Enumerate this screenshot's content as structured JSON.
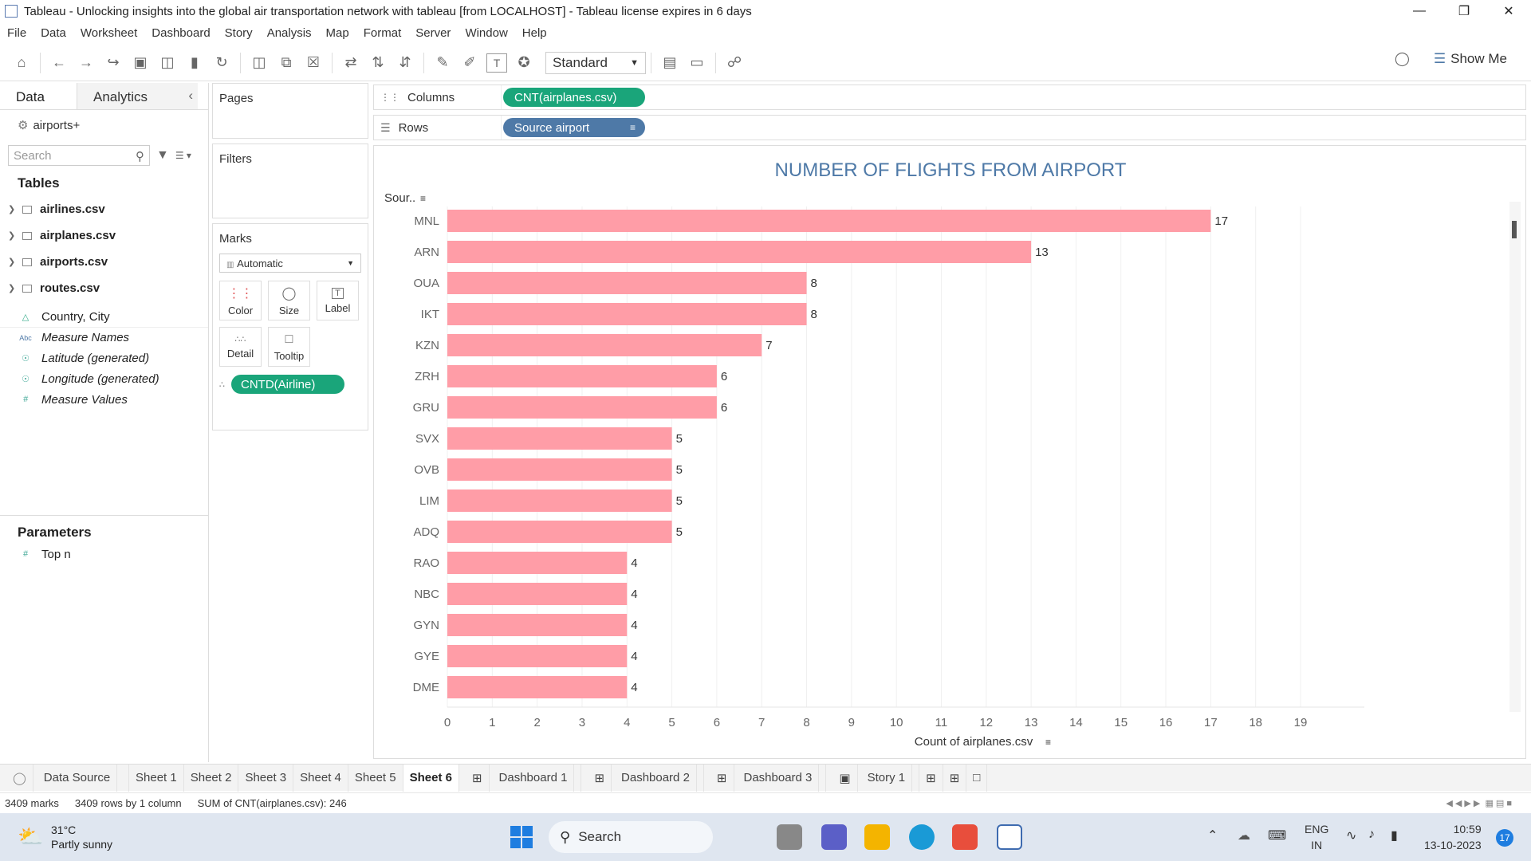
{
  "window": {
    "title": "Tableau - Unlocking insights into the global air transportation network with tableau [from LOCALHOST] - Tableau license expires in 6 days"
  },
  "menu": [
    "File",
    "Data",
    "Worksheet",
    "Dashboard",
    "Story",
    "Analysis",
    "Map",
    "Format",
    "Server",
    "Window",
    "Help"
  ],
  "toolbar": {
    "fit_mode": "Standard",
    "show_me": "Show Me"
  },
  "left_panel": {
    "tab_data": "Data",
    "tab_analytics": "Analytics",
    "datasource": "airports+",
    "search_placeholder": "Search",
    "tables_heading": "Tables",
    "tables": [
      "airlines.csv",
      "airplanes.csv",
      "airports.csv",
      "routes.csv"
    ],
    "fields": [
      {
        "name": "Country, City",
        "italic": false,
        "icon": "hierarchy-icon"
      },
      {
        "name": "Measure Names",
        "italic": true,
        "icon": "abc-icon"
      },
      {
        "name": "Latitude (generated)",
        "italic": true,
        "icon": "globe-icon"
      },
      {
        "name": "Longitude (generated)",
        "italic": true,
        "icon": "globe-icon"
      },
      {
        "name": "Measure Values",
        "italic": true,
        "icon": "hash-icon"
      }
    ],
    "parameters_heading": "Parameters",
    "parameters": [
      "Top n"
    ]
  },
  "shelves": {
    "pages": "Pages",
    "filters": "Filters",
    "marks": "Marks",
    "marks_type": "Automatic",
    "marks_buttons": [
      "Color",
      "Size",
      "Label",
      "Detail",
      "Tooltip"
    ],
    "marks_pill": "CNTD(Airline)",
    "columns_label": "Columns",
    "columns_pill": "CNT(airplanes.csv)",
    "rows_label": "Rows",
    "rows_pill": "Source airport"
  },
  "chart_data": {
    "type": "bar",
    "orientation": "horizontal",
    "title": "NUMBER OF FLIGHTS FROM AIRPORT",
    "row_header": "Sour..",
    "xlabel": "Count of airplanes.csv",
    "categories": [
      "MNL",
      "ARN",
      "OUA",
      "IKT",
      "KZN",
      "ZRH",
      "GRU",
      "SVX",
      "OVB",
      "LIM",
      "ADQ",
      "RAO",
      "NBC",
      "GYN",
      "GYE",
      "DME"
    ],
    "values": [
      17,
      13,
      8,
      8,
      7,
      6,
      6,
      5,
      5,
      5,
      5,
      4,
      4,
      4,
      4,
      4
    ],
    "xlim": [
      0,
      19
    ],
    "xticks": [
      0,
      1,
      2,
      3,
      4,
      5,
      6,
      7,
      8,
      9,
      10,
      11,
      12,
      13,
      14,
      15,
      16,
      17,
      18,
      19
    ],
    "bar_color": "#ff9da7",
    "title_color": "#4e79a7",
    "grid": true
  },
  "sheet_tabs": {
    "data_source": "Data Source",
    "tabs": [
      "Sheet 1",
      "Sheet 2",
      "Sheet 3",
      "Sheet 4",
      "Sheet 5",
      "Sheet 6",
      "Dashboard 1",
      "Dashboard 2",
      "Dashboard 3",
      "Story 1"
    ],
    "active": "Sheet 6"
  },
  "status": {
    "marks": "3409 marks",
    "rows": "3409 rows by 1 column",
    "sum": "SUM of CNT(airplanes.csv): 246"
  },
  "taskbar": {
    "weather_temp": "31°C",
    "weather_desc": "Partly sunny",
    "search": "Search",
    "lang_top": "ENG",
    "lang_bottom": "IN",
    "time": "10:59",
    "date": "13-10-2023",
    "badge": "17"
  }
}
